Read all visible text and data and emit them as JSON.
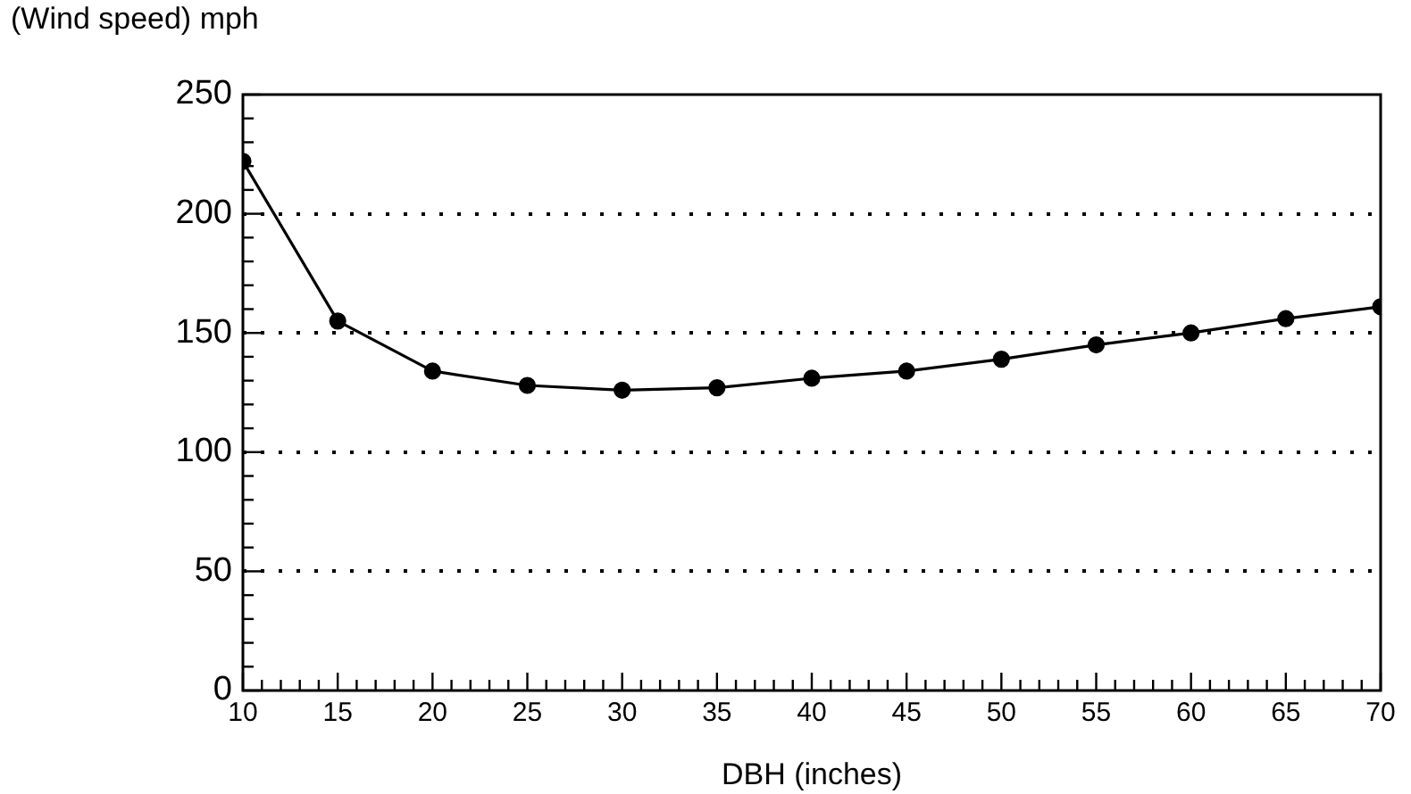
{
  "chart_data": {
    "type": "line",
    "xlabel": "DBH (inches)",
    "ylabel": "(Wind speed) mph",
    "x": [
      10,
      15,
      20,
      25,
      30,
      35,
      40,
      45,
      50,
      55,
      60,
      65,
      70
    ],
    "series": [
      {
        "color": "#000000",
        "values": [
          222,
          155,
          134,
          128,
          126,
          127,
          131,
          134,
          139,
          145,
          150,
          156,
          161
        ]
      }
    ],
    "xlim": [
      10,
      70
    ],
    "ylim": [
      0,
      250
    ],
    "xticks": [
      10,
      {
        "value": 11,
        "label": null
      },
      {
        "value": 12,
        "label": null
      },
      {
        "value": 13,
        "label": null
      },
      {
        "value": 14,
        "label": null
      },
      15,
      {
        "value": 16,
        "label": null
      },
      {
        "value": 17,
        "label": null
      },
      {
        "value": 18,
        "label": null
      },
      {
        "value": 19,
        "label": null
      },
      20,
      {
        "value": 21,
        "label": null
      },
      {
        "value": 22,
        "label": null
      },
      {
        "value": 23,
        "label": null
      },
      {
        "value": 24,
        "label": null
      },
      25,
      {
        "value": 26,
        "label": null
      },
      {
        "value": 27,
        "label": null
      },
      {
        "value": 28,
        "label": null
      },
      {
        "value": 29,
        "label": null
      },
      30,
      {
        "value": 31,
        "label": null
      },
      {
        "value": 32,
        "label": null
      },
      {
        "value": 33,
        "label": null
      },
      {
        "value": 34,
        "label": null
      },
      35,
      {
        "value": 36,
        "label": null
      },
      {
        "value": 37,
        "label": null
      },
      {
        "value": 38,
        "label": null
      },
      {
        "value": 39,
        "label": null
      },
      40,
      {
        "value": 41,
        "label": null
      },
      {
        "value": 42,
        "label": null
      },
      {
        "value": 43,
        "label": null
      },
      {
        "value": 44,
        "label": null
      },
      45,
      {
        "value": 46,
        "label": null
      },
      {
        "value": 47,
        "label": null
      },
      {
        "value": 48,
        "label": null
      },
      {
        "value": 49,
        "label": null
      },
      50,
      {
        "value": 51,
        "label": null
      },
      {
        "value": 52,
        "label": null
      },
      {
        "value": 53,
        "label": null
      },
      {
        "value": 54,
        "label": null
      },
      55,
      {
        "value": 56,
        "label": null
      },
      {
        "value": 57,
        "label": null
      },
      {
        "value": 58,
        "label": null
      },
      {
        "value": 59,
        "label": null
      },
      60,
      {
        "value": 61,
        "label": null
      },
      {
        "value": 62,
        "label": null
      },
      {
        "value": 63,
        "label": null
      },
      {
        "value": 64,
        "label": null
      },
      65,
      {
        "value": 66,
        "label": null
      },
      {
        "value": 67,
        "label": null
      },
      {
        "value": 68,
        "label": null
      },
      {
        "value": 69,
        "label": null
      },
      70
    ],
    "yticks": [
      0,
      {
        "value": 10,
        "label": null
      },
      {
        "value": 20,
        "label": null
      },
      {
        "value": 30,
        "label": null
      },
      {
        "value": 40,
        "label": null
      },
      50,
      {
        "value": 60,
        "label": null
      },
      {
        "value": 70,
        "label": null
      },
      {
        "value": 80,
        "label": null
      },
      {
        "value": 90,
        "label": null
      },
      100,
      {
        "value": 110,
        "label": null
      },
      {
        "value": 120,
        "label": null
      },
      {
        "value": 130,
        "label": null
      },
      {
        "value": 140,
        "label": null
      },
      150,
      {
        "value": 160,
        "label": null
      },
      {
        "value": 170,
        "label": null
      },
      {
        "value": 180,
        "label": null
      },
      {
        "value": 190,
        "label": null
      },
      200,
      {
        "value": 210,
        "label": null
      },
      {
        "value": 220,
        "label": null
      },
      {
        "value": 230,
        "label": null
      },
      {
        "value": 240,
        "label": null
      },
      250
    ],
    "grid": "y",
    "legend": false,
    "marker": "circle",
    "line_style": "solid"
  }
}
